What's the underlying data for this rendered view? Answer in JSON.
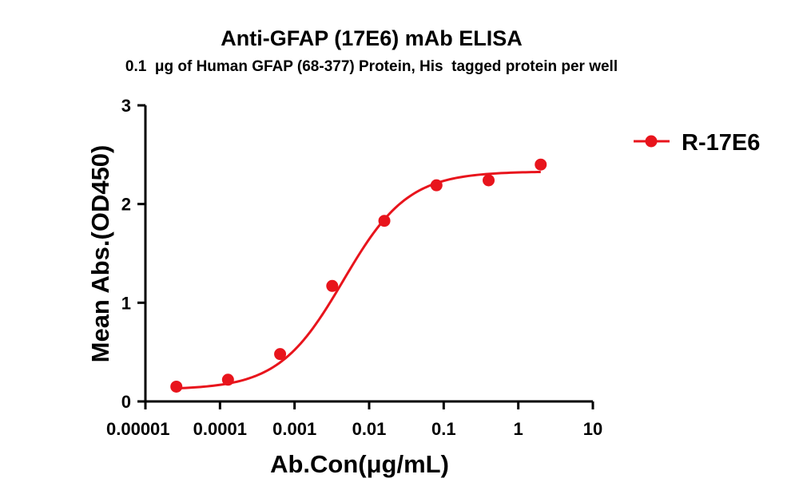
{
  "chart_data": {
    "type": "scatter",
    "title": "Anti-GFAP (17E6) mAb ELISA",
    "subtitle": "0.1  μg of Human GFAP (68-377) Protein, His  tagged protein per well",
    "xlabel": "Ab.Con(μg/mL)",
    "ylabel": "Mean Abs.(OD450)",
    "x_scale": "log",
    "xlim": [
      1e-05,
      10
    ],
    "ylim": [
      0,
      3
    ],
    "x_ticks": [
      {
        "value": 1e-05,
        "label": "0.00001"
      },
      {
        "value": 0.0001,
        "label": "0.0001"
      },
      {
        "value": 0.001,
        "label": "0.001"
      },
      {
        "value": 0.01,
        "label": "0.01"
      },
      {
        "value": 0.1,
        "label": "0.1"
      },
      {
        "value": 1,
        "label": "1"
      },
      {
        "value": 10,
        "label": "10"
      }
    ],
    "y_ticks": [
      {
        "value": 0,
        "label": "0"
      },
      {
        "value": 1,
        "label": "1"
      },
      {
        "value": 2,
        "label": "2"
      },
      {
        "value": 3,
        "label": "3"
      }
    ],
    "legend_position": "top-right",
    "grid": false,
    "series": [
      {
        "name": "R-17E6",
        "color": "#e8141c",
        "marker": "circle",
        "fit": "4PL sigmoidal curve",
        "x": [
          2.6e-05,
          0.000128,
          0.00064,
          0.0032,
          0.016,
          0.08,
          0.4,
          2
        ],
        "y": [
          0.15,
          0.22,
          0.48,
          1.17,
          1.83,
          2.19,
          2.24,
          2.4
        ]
      }
    ]
  }
}
